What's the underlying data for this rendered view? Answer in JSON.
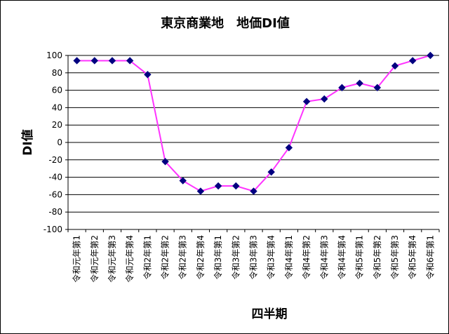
{
  "chart_data": {
    "type": "line",
    "title": "東京商業地　地価DI値",
    "xlabel": "四半期",
    "ylabel": "DI値",
    "ylim": [
      -100,
      100
    ],
    "yticks": [
      100,
      80,
      60,
      40,
      20,
      0,
      -20,
      -40,
      -60,
      -80,
      -100
    ],
    "grid": true,
    "legend": "none",
    "categories": [
      "令和元年第1",
      "令和元年第2",
      "令和元年第3",
      "令和元年第4",
      "令和2年第1",
      "令和2年第2",
      "令和2年第3",
      "令和2年第4",
      "令和3年第1",
      "令和3年第2",
      "令和3年第3",
      "令和3年第4",
      "令和4年第1",
      "令和4年第2",
      "令和4年第3",
      "令和4年第4",
      "令和5年第1",
      "令和5年第2",
      "令和5年第3",
      "令和5年第4",
      "令和6年第1"
    ],
    "series": [
      {
        "values": [
          94,
          94,
          94,
          94,
          78,
          -22,
          -44,
          -56,
          -50,
          -50,
          -56,
          -34,
          -6,
          47,
          50,
          63,
          68,
          63,
          88,
          94,
          100
        ],
        "line_color": "#ff33ff",
        "marker_color": "#000080"
      }
    ]
  }
}
